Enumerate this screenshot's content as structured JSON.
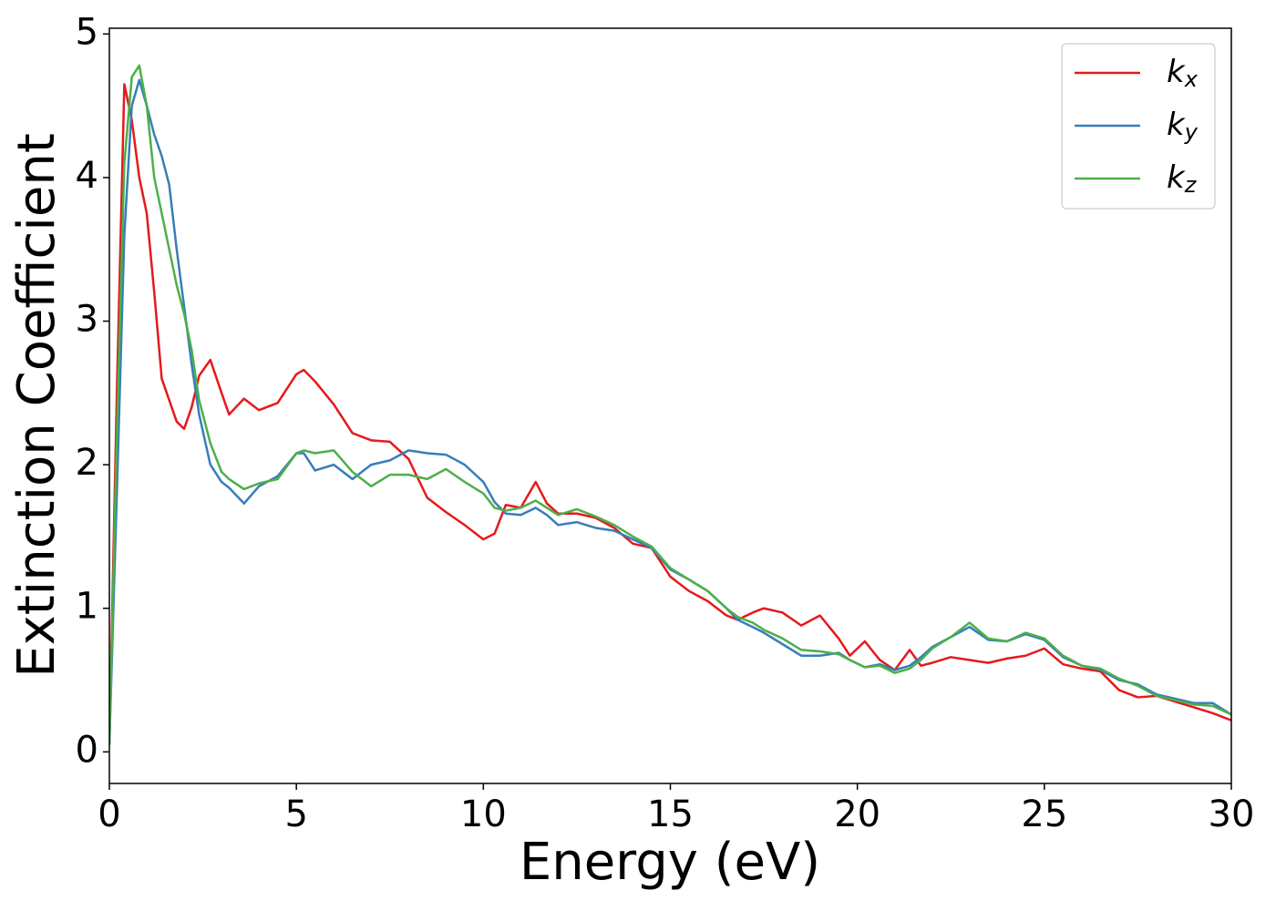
{
  "chart_data": {
    "type": "line",
    "xlabel": "Energy (eV)",
    "ylabel": "Extinction Coefficient",
    "x": [
      0,
      0.2,
      0.4,
      0.6,
      0.8,
      1.0,
      1.2,
      1.4,
      1.6,
      1.8,
      2.0,
      2.2,
      2.4,
      2.7,
      3.0,
      3.2,
      3.6,
      4.0,
      4.5,
      5.0,
      5.2,
      5.5,
      6.0,
      6.5,
      7.0,
      7.5,
      8.0,
      8.5,
      9.0,
      9.5,
      10.0,
      10.3,
      10.6,
      11.0,
      11.4,
      11.7,
      12.0,
      12.5,
      13.0,
      13.5,
      14.0,
      14.5,
      15.0,
      15.5,
      16.0,
      16.5,
      16.8,
      17.2,
      17.5,
      18.0,
      18.5,
      19.0,
      19.5,
      19.8,
      20.2,
      20.6,
      21.0,
      21.4,
      21.7,
      22.0,
      22.5,
      23.0,
      23.5,
      24.0,
      24.5,
      25.0,
      25.5,
      26.0,
      26.5,
      27.0,
      27.5,
      28.0,
      28.5,
      29.0,
      29.5,
      30.0
    ],
    "series": [
      {
        "name": "kx",
        "color": "#e41a1c",
        "values": [
          0.05,
          2.5,
          4.65,
          4.4,
          4.0,
          3.75,
          3.2,
          2.6,
          2.45,
          2.3,
          2.25,
          2.4,
          2.62,
          2.73,
          2.5,
          2.35,
          2.46,
          2.38,
          2.43,
          2.63,
          2.66,
          2.58,
          2.42,
          2.22,
          2.17,
          2.16,
          2.04,
          1.77,
          1.67,
          1.58,
          1.48,
          1.52,
          1.72,
          1.7,
          1.88,
          1.73,
          1.66,
          1.66,
          1.63,
          1.56,
          1.45,
          1.42,
          1.22,
          1.12,
          1.05,
          0.95,
          0.92,
          0.97,
          1.0,
          0.97,
          0.88,
          0.95,
          0.79,
          0.67,
          0.77,
          0.64,
          0.57,
          0.71,
          0.6,
          0.62,
          0.66,
          0.64,
          0.62,
          0.65,
          0.67,
          0.72,
          0.61,
          0.58,
          0.56,
          0.43,
          0.38,
          0.39,
          0.35,
          0.31,
          0.27,
          0.22
        ]
      },
      {
        "name": "ky",
        "color": "#377eb8",
        "values": [
          0.05,
          1.8,
          3.6,
          4.5,
          4.68,
          4.5,
          4.3,
          4.15,
          3.95,
          3.5,
          3.1,
          2.7,
          2.35,
          2.0,
          1.88,
          1.84,
          1.73,
          1.85,
          1.92,
          2.08,
          2.08,
          1.96,
          2.0,
          1.9,
          2.0,
          2.03,
          2.1,
          2.08,
          2.07,
          2.0,
          1.88,
          1.74,
          1.66,
          1.65,
          1.7,
          1.65,
          1.58,
          1.6,
          1.56,
          1.54,
          1.48,
          1.42,
          1.27,
          1.2,
          1.12,
          1.0,
          0.92,
          0.87,
          0.83,
          0.75,
          0.67,
          0.67,
          0.69,
          0.64,
          0.59,
          0.61,
          0.57,
          0.6,
          0.66,
          0.73,
          0.8,
          0.87,
          0.78,
          0.77,
          0.82,
          0.78,
          0.66,
          0.6,
          0.57,
          0.5,
          0.47,
          0.4,
          0.37,
          0.34,
          0.34,
          0.26
        ]
      },
      {
        "name": "kz",
        "color": "#4daf4a",
        "values": [
          0.05,
          2.2,
          4.1,
          4.7,
          4.78,
          4.5,
          4.0,
          3.75,
          3.5,
          3.25,
          3.05,
          2.8,
          2.45,
          2.15,
          1.95,
          1.9,
          1.83,
          1.87,
          1.9,
          2.08,
          2.1,
          2.08,
          2.1,
          1.95,
          1.85,
          1.93,
          1.93,
          1.9,
          1.97,
          1.88,
          1.8,
          1.7,
          1.68,
          1.7,
          1.75,
          1.7,
          1.65,
          1.69,
          1.64,
          1.58,
          1.5,
          1.43,
          1.28,
          1.2,
          1.12,
          1.0,
          0.94,
          0.9,
          0.85,
          0.79,
          0.71,
          0.7,
          0.68,
          0.64,
          0.59,
          0.6,
          0.55,
          0.58,
          0.64,
          0.72,
          0.8,
          0.9,
          0.79,
          0.77,
          0.83,
          0.79,
          0.67,
          0.6,
          0.58,
          0.51,
          0.46,
          0.39,
          0.36,
          0.33,
          0.32,
          0.26
        ]
      }
    ],
    "xlim": [
      0,
      30
    ],
    "ylim": [
      -0.22,
      5.04
    ],
    "xticks": [
      0,
      5,
      10,
      15,
      20,
      25,
      30
    ],
    "yticks": [
      0,
      1,
      2,
      3,
      4,
      5
    ],
    "legend": "upper right"
  }
}
